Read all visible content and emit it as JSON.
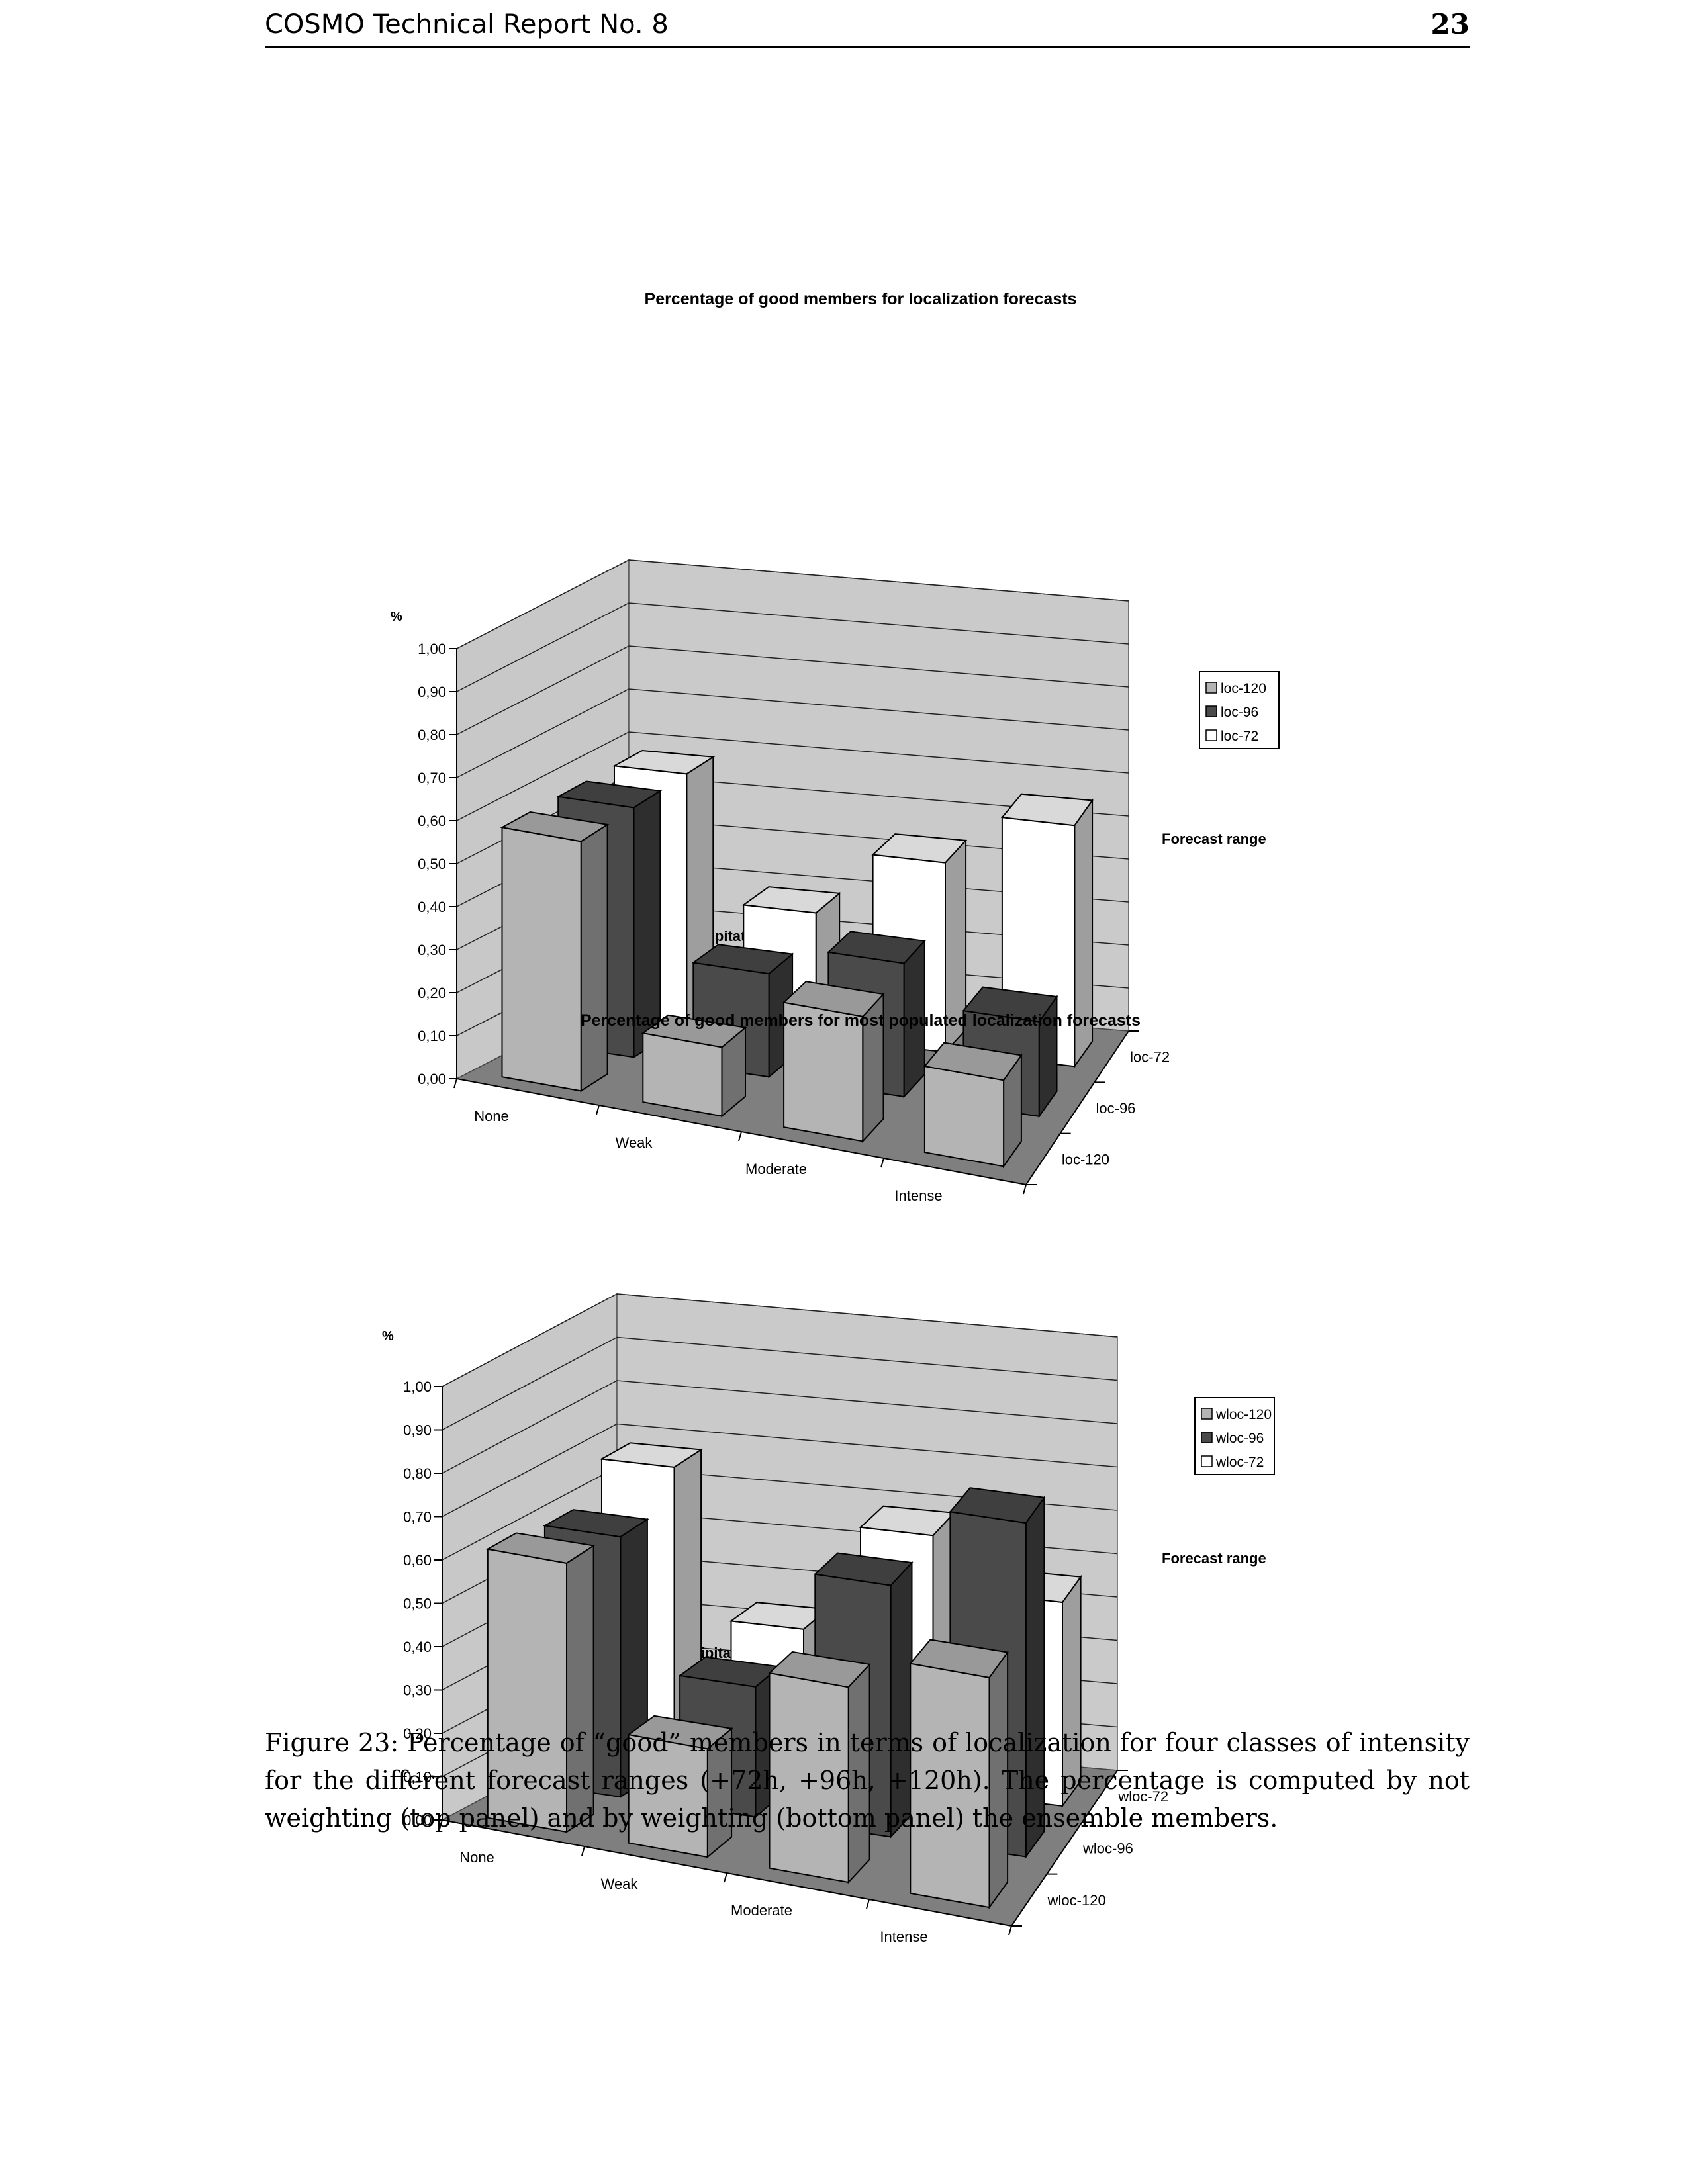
{
  "header": {
    "left": "COSMO Technical Report No. 8",
    "page_number": "23"
  },
  "chart_data": [
    {
      "type": "bar",
      "style": "3d-column",
      "title": "Percentage of good members for localization forecasts",
      "xlabel": "Type of observed precipitation",
      "ylabel": "%",
      "zlabel": "Forecast range",
      "categories": [
        "None",
        "Weak",
        "Moderate",
        "Intense"
      ],
      "yticks": [
        "0,00",
        "0,10",
        "0,20",
        "0,30",
        "0,40",
        "0,50",
        "0,60",
        "0,70",
        "0,80",
        "0,90",
        "1,00"
      ],
      "ylim": [
        0,
        1
      ],
      "grid": true,
      "legend_position": "right",
      "series": [
        {
          "name": "loc-120",
          "color": "#b4b4b4",
          "values": [
            0.58,
            0.16,
            0.29,
            0.2
          ]
        },
        {
          "name": "loc-96",
          "color": "#4a4a4a",
          "values": [
            0.58,
            0.24,
            0.31,
            0.22
          ]
        },
        {
          "name": "loc-72",
          "color": "#ffffff",
          "values": [
            0.58,
            0.29,
            0.44,
            0.56
          ]
        }
      ]
    },
    {
      "type": "bar",
      "style": "3d-column",
      "title": "Percentage of good members for most populated localization forecasts",
      "xlabel": "Type of observed precipitation",
      "ylabel": "%",
      "zlabel": "Forecast range",
      "categories": [
        "None",
        "Weak",
        "Moderate",
        "Intense"
      ],
      "yticks": [
        "0,00",
        "0,10",
        "0,20",
        "0,30",
        "0,40",
        "0,50",
        "0,60",
        "0,70",
        "0,80",
        "0,90",
        "1,00"
      ],
      "ylim": [
        0,
        1
      ],
      "grid": true,
      "legend_position": "right",
      "series": [
        {
          "name": "wloc-120",
          "color": "#b4b4b4",
          "values": [
            0.62,
            0.25,
            0.45,
            0.53
          ]
        },
        {
          "name": "wloc-96",
          "color": "#4a4a4a",
          "values": [
            0.6,
            0.3,
            0.58,
            0.77
          ]
        },
        {
          "name": "wloc-72",
          "color": "#ffffff",
          "values": [
            0.68,
            0.34,
            0.59,
            0.47
          ]
        }
      ]
    }
  ],
  "caption": "Figure 23: Percentage of “good” members in terms of localization for four classes of intensity for the different forecast ranges (+72h, +96h, +120h). The percentage is computed by not weighting (top panel) and by weighting (bottom panel) the ensemble members."
}
